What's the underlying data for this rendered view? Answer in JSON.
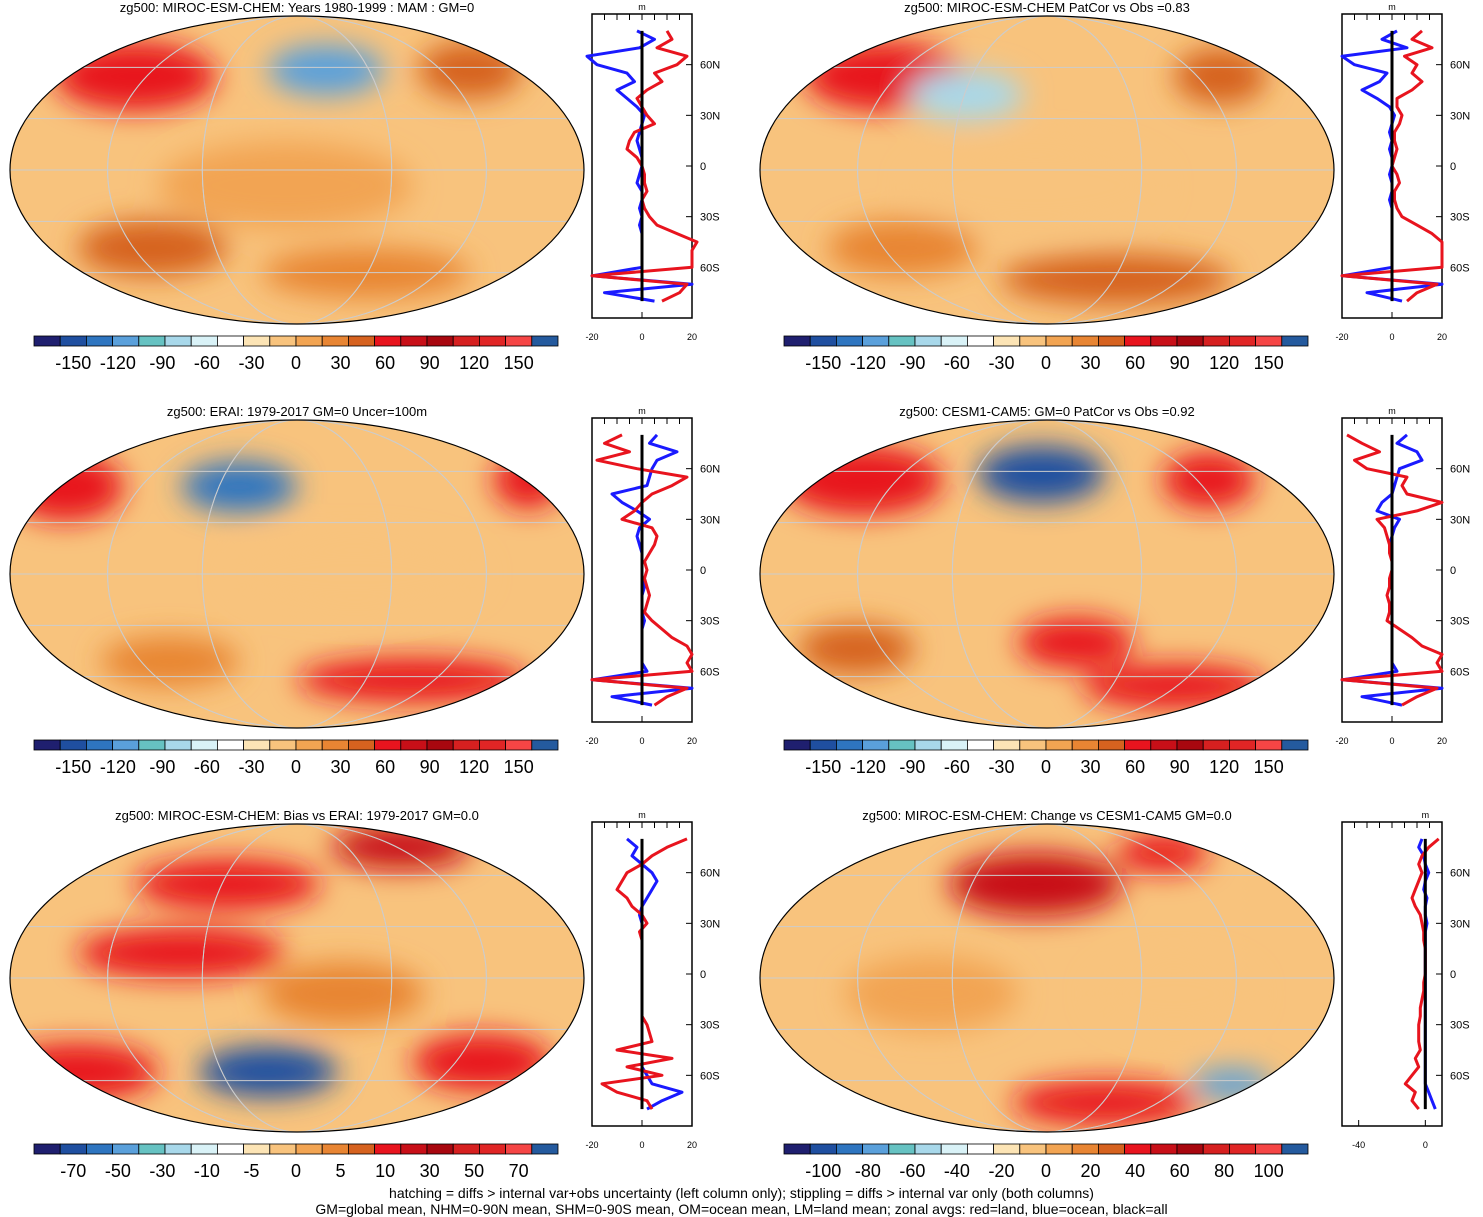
{
  "colors": {
    "land": "#e8141e",
    "ocean": "#1a1aff",
    "all": "#000000",
    "palette_neg": [
      "#1f1f6f",
      "#1f4fa0",
      "#2e75c0",
      "#5aa0db",
      "#66c2c2",
      "#a8d8ea",
      "#d9f2f7",
      "#ffffff"
    ],
    "palette_pos": [
      "#fce4b5",
      "#f8c37d",
      "#f2a452",
      "#e88533",
      "#d6621f",
      "#e8141e",
      "#c80f18",
      "#a8070f",
      "#d62020",
      "#e02525",
      "#f54545",
      "#245a9e"
    ]
  },
  "footer": {
    "line1": "hatching = diffs > internal var+obs uncertainty (left column only); stippling = diffs > internal var only (both columns)",
    "line2": "GM=global mean, NHM=0-90N mean, SHM=0-90S mean, OM=ocean mean, LM=land mean; zonal avgs: red=land, blue=ocean, black=all"
  },
  "chart_data": [
    {
      "type": "heatmap",
      "title": "zg500: MIROC-ESM-CHEM: Years 1980-1999 : MAM : GM=0",
      "colorbar_labels": [
        "-150",
        "-120",
        "-90",
        "-60",
        "-30",
        "0",
        "30",
        "60",
        "90",
        "120",
        "150"
      ],
      "zonal": {
        "unit": "m",
        "lat_labels": [
          "60N",
          "30N",
          "0",
          "30S",
          "60S"
        ],
        "x_tick_labels": [
          "-20",
          "0",
          "20"
        ],
        "xlim": [
          -20,
          20
        ],
        "lat": [
          80,
          75,
          70,
          65,
          60,
          55,
          50,
          45,
          40,
          35,
          30,
          25,
          20,
          15,
          10,
          5,
          0,
          -5,
          -10,
          -15,
          -20,
          -25,
          -30,
          -35,
          -40,
          -45,
          -50,
          -55,
          -60,
          -65,
          -70,
          -75,
          -80
        ],
        "land": [
          10,
          12,
          6,
          18,
          14,
          5,
          8,
          2,
          -2,
          0,
          2,
          5,
          -3,
          -5,
          -6,
          -2,
          0,
          1,
          1,
          2,
          0,
          1,
          3,
          6,
          14,
          22,
          20,
          20,
          20,
          -20,
          18,
          15,
          8
        ],
        "ocean": [
          -2,
          5,
          -1,
          -22,
          -18,
          -6,
          -3,
          -10,
          -6,
          -2,
          1,
          0,
          -1,
          -2,
          -1,
          0,
          0,
          -1,
          -2,
          0,
          0,
          -1,
          0,
          -1,
          0,
          0,
          0,
          0,
          0,
          -20,
          20,
          -15,
          5
        ],
        "all": [
          0,
          0,
          0,
          0,
          0,
          0,
          0,
          0,
          0,
          0,
          0,
          0,
          0,
          0,
          0,
          0,
          0,
          0,
          0,
          0,
          0,
          0,
          0,
          0,
          0,
          0,
          0,
          0,
          0,
          0,
          0,
          0,
          0
        ]
      }
    },
    {
      "type": "heatmap",
      "title": "zg500: MIROC-ESM-CHEM PatCor vs Obs =0.83",
      "colorbar_labels": [
        "-150",
        "-120",
        "-90",
        "-60",
        "-30",
        "0",
        "30",
        "60",
        "90",
        "120",
        "150"
      ],
      "zonal": {
        "unit": "m",
        "lat_labels": [
          "60N",
          "30N",
          "0",
          "30S",
          "60S"
        ],
        "x_tick_labels": [
          "-20",
          "0",
          "20"
        ],
        "xlim": [
          -20,
          20
        ],
        "lat": [
          80,
          75,
          70,
          65,
          60,
          55,
          50,
          45,
          40,
          35,
          30,
          25,
          20,
          15,
          10,
          5,
          0,
          -5,
          -10,
          -15,
          -20,
          -25,
          -30,
          -35,
          -40,
          -45,
          -50,
          -55,
          -60,
          -65,
          -70,
          -75,
          -80
        ],
        "land": [
          12,
          8,
          16,
          5,
          10,
          8,
          12,
          8,
          2,
          2,
          4,
          3,
          1,
          1,
          2,
          1,
          0,
          2,
          3,
          1,
          1,
          2,
          4,
          10,
          16,
          20,
          20,
          20,
          20,
          -20,
          18,
          10,
          6
        ],
        "ocean": [
          2,
          -4,
          6,
          -20,
          -15,
          -2,
          -5,
          -12,
          -6,
          -1,
          1,
          0,
          -1,
          0,
          -1,
          0,
          0,
          -1,
          0,
          0,
          -1,
          0,
          0,
          0,
          0,
          0,
          0,
          0,
          0,
          -20,
          20,
          -10,
          4
        ],
        "all": [
          0,
          0,
          0,
          0,
          0,
          0,
          0,
          0,
          0,
          0,
          0,
          0,
          0,
          0,
          0,
          0,
          0,
          0,
          0,
          0,
          0,
          0,
          0,
          0,
          0,
          0,
          0,
          0,
          0,
          0,
          0,
          0,
          0
        ]
      }
    },
    {
      "type": "heatmap",
      "title": "zg500: ERAI: 1979-2017 GM=0 Uncer=100m",
      "colorbar_labels": [
        "-150",
        "-120",
        "-90",
        "-60",
        "-30",
        "0",
        "30",
        "60",
        "90",
        "120",
        "150"
      ],
      "zonal": {
        "unit": "m",
        "lat_labels": [
          "60N",
          "30N",
          "0",
          "30S",
          "60S"
        ],
        "x_tick_labels": [
          "-20",
          "0",
          "20"
        ],
        "xlim": [
          -20,
          20
        ],
        "lat": [
          80,
          75,
          70,
          65,
          60,
          55,
          50,
          45,
          40,
          35,
          30,
          25,
          20,
          15,
          10,
          5,
          0,
          -5,
          -10,
          -15,
          -20,
          -25,
          -30,
          -35,
          -40,
          -45,
          -50,
          -55,
          -60,
          -65,
          -70,
          -75,
          -80
        ],
        "land": [
          -8,
          -15,
          -5,
          -18,
          -2,
          18,
          12,
          4,
          0,
          -3,
          -8,
          4,
          6,
          5,
          3,
          1,
          2,
          1,
          2,
          3,
          2,
          1,
          4,
          8,
          12,
          18,
          20,
          18,
          20,
          -20,
          18,
          10,
          5
        ],
        "ocean": [
          6,
          3,
          14,
          6,
          4,
          3,
          2,
          -12,
          -8,
          -2,
          3,
          -1,
          -2,
          -1,
          0,
          0,
          0,
          0,
          1,
          0,
          0,
          0,
          1,
          0,
          0,
          0,
          0,
          0,
          2,
          -20,
          20,
          -12,
          4
        ],
        "all": [
          0,
          0,
          0,
          0,
          0,
          0,
          0,
          0,
          0,
          0,
          0,
          0,
          0,
          0,
          0,
          0,
          0,
          0,
          0,
          0,
          0,
          0,
          0,
          0,
          0,
          0,
          0,
          0,
          0,
          0,
          0,
          0,
          0
        ]
      }
    },
    {
      "type": "heatmap",
      "title": "zg500: CESM1-CAM5: GM=0 PatCor vs Obs =0.92",
      "colorbar_labels": [
        "-150",
        "-120",
        "-90",
        "-60",
        "-30",
        "0",
        "30",
        "60",
        "90",
        "120",
        "150"
      ],
      "zonal": {
        "unit": "m",
        "lat_labels": [
          "60N",
          "30N",
          "0",
          "30S",
          "60S"
        ],
        "x_tick_labels": [
          "-20",
          "0",
          "20"
        ],
        "xlim": [
          -20,
          20
        ],
        "lat": [
          80,
          75,
          70,
          65,
          60,
          55,
          50,
          45,
          40,
          35,
          30,
          25,
          20,
          15,
          10,
          5,
          0,
          -5,
          -10,
          -15,
          -20,
          -25,
          -30,
          -35,
          -40,
          -45,
          -50,
          -55,
          -60,
          -65,
          -70,
          -75,
          -80
        ],
        "land": [
          -18,
          -12,
          -5,
          -15,
          -10,
          6,
          4,
          6,
          20,
          10,
          -6,
          -3,
          -2,
          -1,
          -1,
          0,
          0,
          -1,
          -1,
          -2,
          -1,
          -1,
          -2,
          3,
          8,
          12,
          20,
          18,
          20,
          -20,
          18,
          10,
          4
        ],
        "ocean": [
          6,
          2,
          10,
          12,
          3,
          2,
          1,
          0,
          -4,
          -6,
          3,
          1,
          0,
          -1,
          0,
          0,
          0,
          0,
          0,
          0,
          0,
          0,
          0,
          0,
          0,
          0,
          0,
          0,
          2,
          -20,
          20,
          -12,
          4
        ],
        "all": [
          0,
          0,
          0,
          0,
          0,
          0,
          0,
          0,
          0,
          0,
          0,
          0,
          0,
          0,
          0,
          0,
          0,
          0,
          0,
          0,
          0,
          0,
          0,
          0,
          0,
          0,
          0,
          0,
          0,
          0,
          0,
          0,
          0
        ]
      }
    },
    {
      "type": "heatmap",
      "title": "zg500: MIROC-ESM-CHEM: Bias vs ERAI: 1979-2017 GM=0.0",
      "colorbar_labels": [
        "-70",
        "-50",
        "-30",
        "-10",
        "-5",
        "0",
        "5",
        "10",
        "30",
        "50",
        "70"
      ],
      "zonal": {
        "unit": "m",
        "lat_labels": [
          "60N",
          "30N",
          "0",
          "30S",
          "60S"
        ],
        "x_tick_labels": [
          "-20",
          "0",
          "20"
        ],
        "xlim": [
          -20,
          20
        ],
        "lat": [
          80,
          75,
          70,
          65,
          60,
          55,
          50,
          45,
          40,
          35,
          30,
          25,
          20,
          15,
          10,
          5,
          0,
          -5,
          -10,
          -15,
          -20,
          -25,
          -30,
          -35,
          -40,
          -45,
          -50,
          -55,
          -60,
          -65,
          -70,
          -75,
          -80
        ],
        "land": [
          18,
          10,
          4,
          0,
          -6,
          -8,
          -10,
          -6,
          -4,
          0,
          2,
          -1,
          0,
          0,
          0,
          0,
          0,
          0,
          0,
          0,
          0,
          0,
          2,
          3,
          4,
          -10,
          12,
          -6,
          8,
          -16,
          -10,
          2,
          4
        ],
        "ocean": [
          -6,
          -2,
          -4,
          0,
          4,
          6,
          4,
          2,
          0,
          -1,
          0,
          0,
          0,
          0,
          0,
          0,
          0,
          0,
          0,
          0,
          0,
          0,
          0,
          0,
          0,
          0,
          0,
          0,
          2,
          4,
          16,
          8,
          2
        ],
        "all": [
          0,
          0,
          0,
          0,
          0,
          0,
          0,
          0,
          0,
          0,
          0,
          0,
          0,
          0,
          0,
          0,
          0,
          0,
          0,
          0,
          0,
          0,
          0,
          0,
          0,
          0,
          0,
          0,
          0,
          0,
          0,
          0,
          0
        ]
      }
    },
    {
      "type": "heatmap",
      "title": "zg500: MIROC-ESM-CHEM: Change vs CESM1-CAM5 GM=0.0",
      "colorbar_labels": [
        "-100",
        "-80",
        "-60",
        "-40",
        "-20",
        "0",
        "20",
        "40",
        "60",
        "80",
        "100"
      ],
      "zonal": {
        "unit": "m",
        "lat_labels": [
          "60N",
          "30N",
          "0",
          "30S",
          "60S"
        ],
        "x_tick_labels": [
          "-40",
          "0"
        ],
        "xlim": [
          -50,
          10
        ],
        "lat": [
          80,
          75,
          70,
          65,
          60,
          55,
          50,
          45,
          40,
          35,
          30,
          25,
          20,
          15,
          10,
          5,
          0,
          -5,
          -10,
          -15,
          -20,
          -25,
          -30,
          -35,
          -40,
          -45,
          -50,
          -55,
          -60,
          -65,
          -70,
          -75,
          -80
        ],
        "land": [
          8,
          2,
          -2,
          -4,
          -2,
          -4,
          -6,
          -8,
          -6,
          -3,
          -2,
          -1,
          -1,
          0,
          0,
          0,
          0,
          -1,
          -1,
          -2,
          -3,
          -3,
          -4,
          -4,
          -4,
          -3,
          -6,
          -4,
          -8,
          -12,
          -6,
          -8,
          -4
        ],
        "ocean": [
          -2,
          -4,
          -1,
          0,
          2,
          0,
          -1,
          1,
          0,
          0,
          1,
          0,
          0,
          0,
          0,
          0,
          0,
          0,
          0,
          0,
          0,
          0,
          0,
          0,
          0,
          0,
          0,
          0,
          0,
          0,
          2,
          4,
          6
        ],
        "all": [
          0,
          0,
          0,
          0,
          0,
          0,
          0,
          0,
          0,
          0,
          0,
          0,
          0,
          0,
          0,
          0,
          0,
          0,
          0,
          0,
          0,
          0,
          0,
          0,
          0,
          0,
          0,
          0,
          0,
          0,
          0,
          0,
          0
        ]
      }
    }
  ]
}
